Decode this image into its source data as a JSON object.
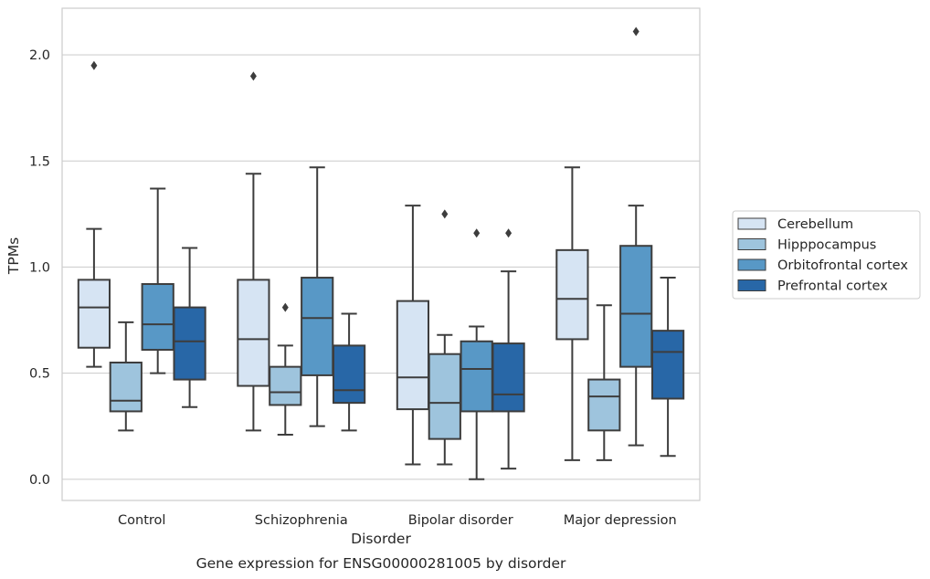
{
  "chart_data": {
    "type": "box",
    "title": "",
    "caption": "Gene expression for ENSG00000281005 by disorder",
    "xlabel": "Disorder",
    "ylabel": "TPMs",
    "ylim": [
      -0.1,
      2.22
    ],
    "yticks": [
      "0.0",
      "0.5",
      "1.0",
      "1.5",
      "2.0"
    ],
    "grid": "horizontal",
    "legend_position": "right",
    "categories": [
      "Control",
      "Schizophrenia",
      "Bipolar disorder",
      "Major depression"
    ],
    "series": [
      {
        "name": "Cerebellum",
        "color": "#d6e4f3",
        "boxes": [
          {
            "whislo": 0.53,
            "q1": 0.62,
            "med": 0.81,
            "q3": 0.94,
            "whishi": 1.18,
            "fliers": [
              1.95
            ]
          },
          {
            "whislo": 0.23,
            "q1": 0.44,
            "med": 0.66,
            "q3": 0.94,
            "whishi": 1.44,
            "fliers": [
              1.9
            ]
          },
          {
            "whislo": 0.07,
            "q1": 0.33,
            "med": 0.48,
            "q3": 0.84,
            "whishi": 1.29,
            "fliers": []
          },
          {
            "whislo": 0.09,
            "q1": 0.66,
            "med": 0.85,
            "q3": 1.08,
            "whishi": 1.47,
            "fliers": []
          }
        ]
      },
      {
        "name": "Hipppocampus",
        "color": "#9ec4dd",
        "boxes": [
          {
            "whislo": 0.23,
            "q1": 0.32,
            "med": 0.37,
            "q3": 0.55,
            "whishi": 0.74,
            "fliers": []
          },
          {
            "whislo": 0.21,
            "q1": 0.35,
            "med": 0.41,
            "q3": 0.53,
            "whishi": 0.63,
            "fliers": [
              0.81
            ]
          },
          {
            "whislo": 0.07,
            "q1": 0.19,
            "med": 0.36,
            "q3": 0.59,
            "whishi": 0.68,
            "fliers": [
              1.25
            ]
          },
          {
            "whislo": 0.09,
            "q1": 0.23,
            "med": 0.39,
            "q3": 0.47,
            "whishi": 0.82,
            "fliers": []
          }
        ]
      },
      {
        "name": "Orbitofrontal cortex",
        "color": "#5898c6",
        "boxes": [
          {
            "whislo": 0.5,
            "q1": 0.61,
            "med": 0.73,
            "q3": 0.92,
            "whishi": 1.37,
            "fliers": []
          },
          {
            "whislo": 0.25,
            "q1": 0.49,
            "med": 0.76,
            "q3": 0.95,
            "whishi": 1.47,
            "fliers": []
          },
          {
            "whislo": 0.0,
            "q1": 0.32,
            "med": 0.52,
            "q3": 0.65,
            "whishi": 0.72,
            "fliers": [
              1.16
            ]
          },
          {
            "whislo": 0.16,
            "q1": 0.53,
            "med": 0.78,
            "q3": 1.1,
            "whishi": 1.29,
            "fliers": [
              2.11
            ]
          }
        ]
      },
      {
        "name": "Prefrontal cortex",
        "color": "#2867a7",
        "boxes": [
          {
            "whislo": 0.34,
            "q1": 0.47,
            "med": 0.65,
            "q3": 0.81,
            "whishi": 1.09,
            "fliers": []
          },
          {
            "whislo": 0.23,
            "q1": 0.36,
            "med": 0.42,
            "q3": 0.63,
            "whishi": 0.78,
            "fliers": []
          },
          {
            "whislo": 0.05,
            "q1": 0.32,
            "med": 0.4,
            "q3": 0.64,
            "whishi": 0.98,
            "fliers": [
              1.16
            ]
          },
          {
            "whislo": 0.11,
            "q1": 0.38,
            "med": 0.6,
            "q3": 0.7,
            "whishi": 0.95,
            "fliers": []
          }
        ]
      }
    ]
  }
}
